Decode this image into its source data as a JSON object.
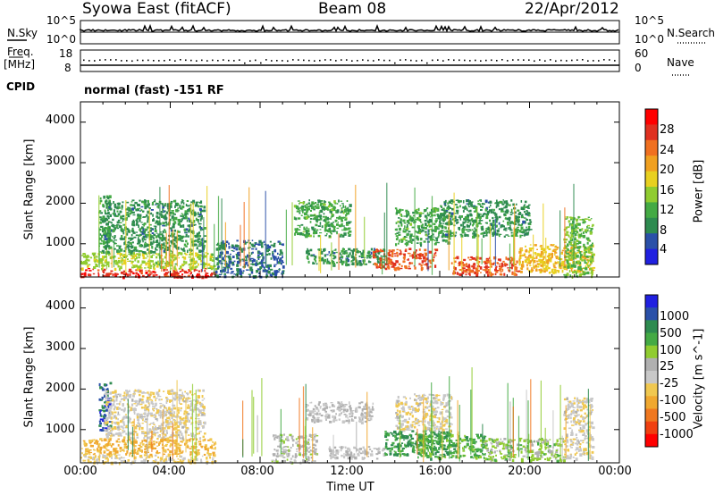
{
  "header": {
    "station": "Syowa East (fitACF)",
    "beam": "Beam 08",
    "date": "22/Apr/2012"
  },
  "status_panels": {
    "nsky_label": "N.Sky",
    "nsky_ticks": [
      "10^5",
      "10^0"
    ],
    "nsearch_label": "N.Search",
    "nsearch_ticks": [
      "10^5",
      "10^0"
    ],
    "freq_label_1": "Freq.",
    "freq_label_2": "[MHz]",
    "freq_ticks": [
      "18",
      "8"
    ],
    "nave_label": "Nave",
    "nave_ticks": [
      "60",
      "0"
    ],
    "cpid_label": "CPID",
    "cpid_value": "normal (fast) -151 RF"
  },
  "axes": {
    "ylabel": "Slant Range [km]",
    "yticks": [
      "4000",
      "3000",
      "2000",
      "1000"
    ],
    "xlabel": "Time UT",
    "xticks": [
      "00:00",
      "04:00",
      "08:00",
      "12:00",
      "16:00",
      "20:00",
      "00:00"
    ]
  },
  "colors": {
    "power": [
      "#2020e0",
      "#2a50a8",
      "#2e8b50",
      "#44aa44",
      "#90cc30",
      "#e8d020",
      "#f0a020",
      "#f07020",
      "#e03020",
      "#ff0000"
    ],
    "velocity": [
      "#ff0000",
      "#f04010",
      "#f07820",
      "#f0a830",
      "#f0c850",
      "#c8c8c8",
      "#b0b0b0",
      "#90cc30",
      "#44aa44",
      "#2e8b50",
      "#2a50a8",
      "#2020e0"
    ]
  },
  "chart_data": [
    {
      "type": "heatmap",
      "title": "Power",
      "xlabel": "Time UT",
      "ylabel": "Slant Range [km]",
      "xlim": [
        0,
        24
      ],
      "ylim": [
        180,
        4500
      ],
      "colorbar": {
        "label": "Power [dB]",
        "ticks": [
          "28",
          "24",
          "20",
          "16",
          "12",
          "8",
          "4"
        ],
        "range": [
          0,
          30
        ]
      },
      "regions": [
        {
          "t": [
            0.0,
            6.0
          ],
          "r": [
            200,
            400
          ],
          "level": 26
        },
        {
          "t": [
            0.0,
            6.0
          ],
          "r": [
            400,
            800
          ],
          "level": 14
        },
        {
          "t": [
            0.8,
            1.3
          ],
          "r": [
            800,
            2200
          ],
          "level": 10
        },
        {
          "t": [
            1.0,
            5.5
          ],
          "r": [
            800,
            2100
          ],
          "level": 8
        },
        {
          "t": [
            6.0,
            9.0
          ],
          "r": [
            200,
            1100
          ],
          "level": 6
        },
        {
          "t": [
            9.5,
            12.0
          ],
          "r": [
            1200,
            2100
          ],
          "level": 10
        },
        {
          "t": [
            10.0,
            13.5
          ],
          "r": [
            500,
            900
          ],
          "level": 8
        },
        {
          "t": [
            13.0,
            15.8
          ],
          "r": [
            400,
            900
          ],
          "level": 24
        },
        {
          "t": [
            14.0,
            16.5
          ],
          "r": [
            1000,
            1900
          ],
          "level": 10
        },
        {
          "t": [
            16.5,
            19.5
          ],
          "r": [
            250,
            700
          ],
          "level": 24
        },
        {
          "t": [
            16.0,
            20.0
          ],
          "r": [
            1200,
            2100
          ],
          "level": 8
        },
        {
          "t": [
            19.5,
            22.8
          ],
          "r": [
            300,
            1000
          ],
          "level": 18
        },
        {
          "t": [
            21.5,
            22.8
          ],
          "r": [
            200,
            1700
          ],
          "level": 12
        }
      ]
    },
    {
      "type": "heatmap",
      "title": "Velocity",
      "xlabel": "Time UT",
      "ylabel": "Slant Range [km]",
      "xlim": [
        0,
        24
      ],
      "ylim": [
        180,
        4500
      ],
      "colorbar": {
        "label": "Velocity [m s^-1]",
        "ticks": [
          "1000",
          "500",
          "100",
          "25",
          "-25",
          "-100",
          "-500",
          "-1000"
        ],
        "range": [
          -1200,
          1200
        ]
      },
      "regions": [
        {
          "t": [
            0.0,
            6.0
          ],
          "r": [
            200,
            400
          ],
          "level": -200
        },
        {
          "t": [
            0.0,
            6.0
          ],
          "r": [
            400,
            800
          ],
          "level": -400
        },
        {
          "t": [
            0.8,
            1.3
          ],
          "r": [
            1000,
            2200
          ],
          "level": 900
        },
        {
          "t": [
            1.0,
            5.5
          ],
          "r": [
            800,
            2000
          ],
          "level": -150
        },
        {
          "t": [
            8.5,
            10.5
          ],
          "r": [
            200,
            900
          ],
          "level": 80
        },
        {
          "t": [
            10.0,
            13.0
          ],
          "r": [
            1200,
            1700
          ],
          "level": 0
        },
        {
          "t": [
            11.0,
            13.5
          ],
          "r": [
            300,
            600
          ],
          "level": 0
        },
        {
          "t": [
            13.5,
            16.5
          ],
          "r": [
            400,
            1000
          ],
          "level": 600
        },
        {
          "t": [
            15.0,
            18.0
          ],
          "r": [
            300,
            900
          ],
          "level": 500
        },
        {
          "t": [
            14.0,
            16.5
          ],
          "r": [
            1000,
            1900
          ],
          "level": -150
        },
        {
          "t": [
            18.0,
            21.5
          ],
          "r": [
            250,
            800
          ],
          "level": 300
        },
        {
          "t": [
            21.5,
            22.8
          ],
          "r": [
            300,
            1800
          ],
          "level": -150
        }
      ]
    }
  ]
}
